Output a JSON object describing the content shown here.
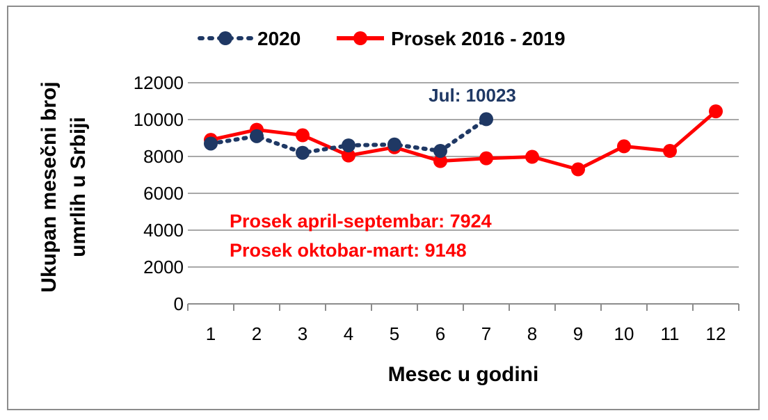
{
  "chart_data": {
    "type": "line",
    "title": "",
    "xlabel": "Mesec u godini",
    "ylabel_lines": [
      "Ukupan mesečni broj",
      "umrlih u Srbiji"
    ],
    "categories": [
      "1",
      "2",
      "3",
      "4",
      "5",
      "6",
      "7",
      "8",
      "9",
      "10",
      "11",
      "12"
    ],
    "yticks": [
      "0",
      "2000",
      "4000",
      "6000",
      "8000",
      "10000",
      "12000"
    ],
    "ylim": [
      0,
      12000
    ],
    "grid": true,
    "legend_position": "top",
    "series": [
      {
        "name": "2020",
        "color": "#1f3864",
        "line_style": "dotted",
        "values": [
          8700,
          9100,
          8200,
          8600,
          8650,
          8300,
          10023,
          null,
          null,
          null,
          null,
          null
        ]
      },
      {
        "name": "Prosek 2016 - 2019",
        "color": "#ff0000",
        "line_style": "solid",
        "values": [
          8900,
          9450,
          9150,
          8050,
          8500,
          7750,
          7900,
          7980,
          7300,
          8550,
          8300,
          10450
        ]
      }
    ],
    "annotations": {
      "callout": "Jul: 10023",
      "note1": "Prosek april-septembar: 7924",
      "note2": "Prosek oktobar-mart: 9148"
    }
  }
}
